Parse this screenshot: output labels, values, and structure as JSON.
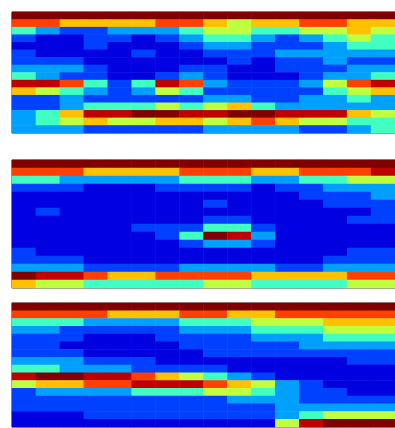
{
  "chart_data": [
    {
      "type": "heatmap",
      "tick_labels": false,
      "color_range": [
        0,
        9
      ],
      "cells": [
        [
          9,
          9,
          9,
          9,
          9,
          9,
          9,
          9,
          9,
          9,
          9,
          9,
          9,
          9,
          9,
          9
        ],
        [
          7,
          7,
          6,
          6,
          6,
          6,
          7,
          7,
          6,
          5,
          6,
          6,
          7,
          7,
          6,
          6
        ],
        [
          4,
          3,
          2,
          2,
          3,
          3,
          3,
          4,
          5,
          5,
          4,
          4,
          5,
          5,
          6,
          5
        ],
        [
          2,
          1,
          1,
          2,
          2,
          1,
          2,
          3,
          4,
          4,
          3,
          2,
          3,
          4,
          5,
          4
        ],
        [
          1,
          1,
          1,
          2,
          1,
          1,
          1,
          2,
          3,
          3,
          2,
          2,
          2,
          3,
          4,
          4
        ],
        [
          2,
          1,
          1,
          1,
          1,
          2,
          1,
          1,
          2,
          2,
          2,
          3,
          3,
          3,
          3,
          3
        ],
        [
          2,
          2,
          2,
          1,
          1,
          1,
          1,
          1,
          1,
          2,
          1,
          2,
          2,
          3,
          2,
          2
        ],
        [
          3,
          3,
          3,
          2,
          1,
          1,
          1,
          2,
          2,
          1,
          1,
          2,
          2,
          2,
          3,
          3
        ],
        [
          4,
          3,
          2,
          2,
          1,
          1,
          2,
          3,
          2,
          1,
          1,
          1,
          2,
          3,
          3,
          4
        ],
        [
          8,
          8,
          7,
          4,
          2,
          4,
          8,
          7,
          3,
          2,
          2,
          2,
          3,
          5,
          7,
          8
        ],
        [
          6,
          5,
          4,
          3,
          2,
          3,
          5,
          4,
          2,
          2,
          2,
          2,
          2,
          4,
          5,
          6
        ],
        [
          2,
          2,
          3,
          2,
          2,
          2,
          2,
          2,
          3,
          3,
          2,
          2,
          3,
          3,
          4,
          3
        ],
        [
          2,
          2,
          3,
          4,
          4,
          4,
          5,
          4,
          5,
          6,
          4,
          3,
          3,
          3,
          3,
          3
        ],
        [
          3,
          4,
          6,
          8,
          8,
          9,
          9,
          8,
          8,
          9,
          9,
          8,
          8,
          8,
          6,
          5
        ],
        [
          3,
          4,
          5,
          6,
          5,
          5,
          6,
          6,
          5,
          6,
          7,
          6,
          5,
          5,
          4,
          4
        ],
        [
          3,
          3,
          3,
          2,
          2,
          2,
          2,
          2,
          3,
          3,
          3,
          3,
          2,
          2,
          3,
          4
        ]
      ]
    },
    {
      "type": "heatmap",
      "tick_labels": false,
      "color_range": [
        0,
        9
      ],
      "cells": [
        [
          9,
          9,
          9,
          9,
          9,
          9,
          9,
          9,
          9,
          9,
          9,
          9,
          9,
          9,
          9,
          9
        ],
        [
          7,
          7,
          7,
          6,
          6,
          6,
          6,
          7,
          7,
          7,
          6,
          6,
          7,
          7,
          7,
          8
        ],
        [
          4,
          4,
          3,
          3,
          3,
          3,
          3,
          4,
          4,
          4,
          3,
          3,
          4,
          4,
          5,
          5
        ],
        [
          2,
          2,
          2,
          1,
          1,
          1,
          2,
          2,
          2,
          2,
          1,
          2,
          2,
          3,
          3,
          3
        ],
        [
          1,
          1,
          1,
          1,
          1,
          1,
          1,
          1,
          1,
          1,
          1,
          1,
          2,
          2,
          2,
          3
        ],
        [
          1,
          1,
          1,
          1,
          1,
          1,
          1,
          1,
          2,
          1,
          1,
          1,
          1,
          2,
          2,
          2
        ],
        [
          1,
          2,
          1,
          1,
          1,
          1,
          1,
          1,
          1,
          1,
          1,
          1,
          1,
          1,
          1,
          2
        ],
        [
          1,
          1,
          1,
          1,
          1,
          1,
          1,
          1,
          2,
          2,
          1,
          1,
          1,
          1,
          2,
          2
        ],
        [
          1,
          1,
          1,
          1,
          1,
          2,
          2,
          2,
          4,
          4,
          2,
          1,
          1,
          1,
          1,
          1
        ],
        [
          1,
          1,
          1,
          1,
          1,
          1,
          2,
          4,
          9,
          8,
          3,
          1,
          1,
          1,
          1,
          1
        ],
        [
          1,
          1,
          1,
          1,
          1,
          1,
          1,
          2,
          3,
          3,
          2,
          1,
          1,
          1,
          1,
          1
        ],
        [
          2,
          1,
          1,
          1,
          1,
          1,
          1,
          1,
          1,
          1,
          1,
          1,
          1,
          1,
          2,
          2
        ],
        [
          2,
          2,
          2,
          1,
          1,
          1,
          1,
          1,
          1,
          1,
          1,
          1,
          1,
          2,
          2,
          2
        ],
        [
          3,
          3,
          3,
          2,
          2,
          2,
          2,
          3,
          3,
          3,
          3,
          2,
          2,
          3,
          3,
          3
        ],
        [
          9,
          8,
          8,
          7,
          6,
          6,
          7,
          7,
          7,
          7,
          6,
          6,
          6,
          6,
          7,
          7
        ],
        [
          6,
          5,
          5,
          4,
          4,
          4,
          4,
          4,
          5,
          5,
          4,
          4,
          4,
          4,
          5,
          5
        ]
      ]
    },
    {
      "type": "heatmap",
      "tick_labels": false,
      "color_range": [
        0,
        9
      ],
      "cells": [
        [
          9,
          9,
          9,
          9,
          9,
          9,
          9,
          9,
          9,
          9,
          9,
          9,
          9,
          9,
          9,
          9
        ],
        [
          7,
          7,
          7,
          7,
          6,
          6,
          6,
          7,
          7,
          6,
          6,
          7,
          7,
          7,
          7,
          7
        ],
        [
          4,
          4,
          4,
          3,
          3,
          3,
          3,
          4,
          4,
          4,
          5,
          5,
          5,
          6,
          6,
          6
        ],
        [
          3,
          3,
          2,
          2,
          2,
          2,
          2,
          3,
          3,
          3,
          4,
          4,
          4,
          5,
          5,
          5
        ],
        [
          2,
          2,
          2,
          1,
          1,
          1,
          2,
          2,
          2,
          2,
          3,
          3,
          3,
          4,
          4,
          4
        ],
        [
          2,
          2,
          1,
          1,
          1,
          1,
          1,
          2,
          2,
          2,
          2,
          2,
          3,
          3,
          3,
          3
        ],
        [
          2,
          2,
          2,
          1,
          1,
          1,
          1,
          1,
          2,
          2,
          2,
          2,
          2,
          2,
          2,
          2
        ],
        [
          3,
          3,
          3,
          2,
          2,
          2,
          1,
          1,
          1,
          1,
          1,
          1,
          1,
          1,
          2,
          2
        ],
        [
          4,
          4,
          3,
          3,
          3,
          2,
          2,
          2,
          2,
          1,
          1,
          1,
          1,
          1,
          1,
          1
        ],
        [
          8,
          9,
          9,
          8,
          8,
          7,
          6,
          5,
          4,
          3,
          2,
          1,
          1,
          1,
          1,
          1
        ],
        [
          5,
          6,
          6,
          7,
          7,
          8,
          8,
          8,
          7,
          6,
          5,
          3,
          2,
          1,
          1,
          1
        ],
        [
          2,
          3,
          3,
          3,
          3,
          4,
          4,
          4,
          5,
          5,
          4,
          3,
          2,
          2,
          1,
          1
        ],
        [
          2,
          2,
          2,
          2,
          2,
          2,
          2,
          2,
          2,
          3,
          3,
          3,
          2,
          2,
          2,
          2
        ],
        [
          2,
          2,
          2,
          2,
          2,
          2,
          2,
          2,
          2,
          2,
          2,
          3,
          3,
          3,
          3,
          3
        ],
        [
          1,
          1,
          1,
          2,
          2,
          2,
          2,
          2,
          2,
          2,
          2,
          3,
          4,
          5,
          5,
          5
        ],
        [
          1,
          1,
          1,
          1,
          1,
          1,
          1,
          1,
          1,
          1,
          1,
          5,
          8,
          9,
          9,
          9
        ]
      ]
    }
  ]
}
